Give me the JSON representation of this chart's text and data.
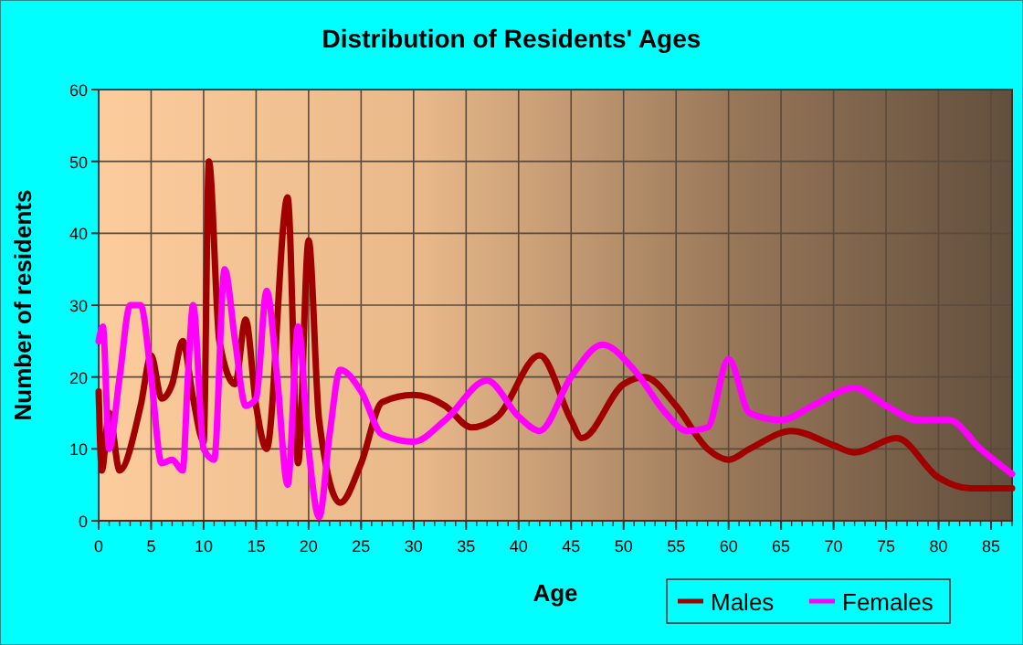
{
  "chart_data": {
    "type": "line",
    "title": "Distribution of Residents' Ages",
    "xlabel": "Age",
    "ylabel": "Number of residents",
    "xlim": [
      0,
      87
    ],
    "xticks": [
      0,
      5,
      10,
      15,
      20,
      25,
      30,
      35,
      40,
      45,
      50,
      55,
      60,
      65,
      70,
      75,
      80,
      85
    ],
    "ylim": [
      0,
      60
    ],
    "yticks": [
      0,
      10,
      20,
      30,
      40,
      50,
      60
    ],
    "grid": true,
    "legend": "bottom right",
    "marker": "none",
    "line_style": "solid",
    "series": [
      {
        "name": "Males",
        "color": "#a00000",
        "x": [
          0,
          0.3,
          1,
          2,
          4,
          5,
          6,
          7,
          8,
          9,
          10,
          10.5,
          11.5,
          13,
          14,
          15,
          16,
          18,
          19,
          20,
          21,
          23,
          25,
          27,
          30,
          33,
          35.5,
          38,
          42,
          45,
          46,
          50,
          52,
          55,
          58,
          60,
          62,
          66,
          70,
          72,
          76,
          80,
          83,
          87
        ],
        "values": [
          18,
          7,
          15,
          7,
          16,
          23,
          17,
          19,
          25,
          17,
          11,
          50,
          25,
          19,
          28,
          16,
          10,
          45,
          8,
          39,
          14,
          2.5,
          8,
          16.5,
          17.5,
          16,
          13,
          14.5,
          23,
          14,
          11.5,
          19,
          20,
          16,
          10,
          8.5,
          10,
          12.5,
          10.5,
          9.5,
          11.5,
          6,
          4.5,
          4.5
        ]
      },
      {
        "name": "Females",
        "color": "#ff00ff",
        "x": [
          0,
          0.4,
          1,
          2,
          3,
          4,
          5,
          6,
          7,
          8,
          8.5,
          9,
          10,
          11,
          12,
          13,
          14,
          15,
          16,
          17,
          18,
          19,
          20,
          21,
          22,
          23,
          25,
          27,
          30,
          33,
          37,
          40,
          42,
          45,
          48,
          51,
          54,
          56,
          58,
          60,
          62,
          65,
          68,
          72,
          75,
          78,
          81,
          84,
          87
        ],
        "values": [
          25,
          27,
          10,
          20,
          30,
          30,
          20,
          8,
          8.5,
          7,
          20,
          30,
          10,
          8.5,
          35,
          25,
          16,
          17,
          32,
          20,
          5,
          27,
          10,
          0.5,
          12,
          21,
          18,
          12,
          11,
          14,
          19.5,
          14.5,
          12.5,
          20,
          24.5,
          21,
          15,
          12.5,
          13,
          22.5,
          15,
          14,
          16,
          18.5,
          16,
          14,
          14,
          10,
          6.5
        ]
      }
    ]
  }
}
